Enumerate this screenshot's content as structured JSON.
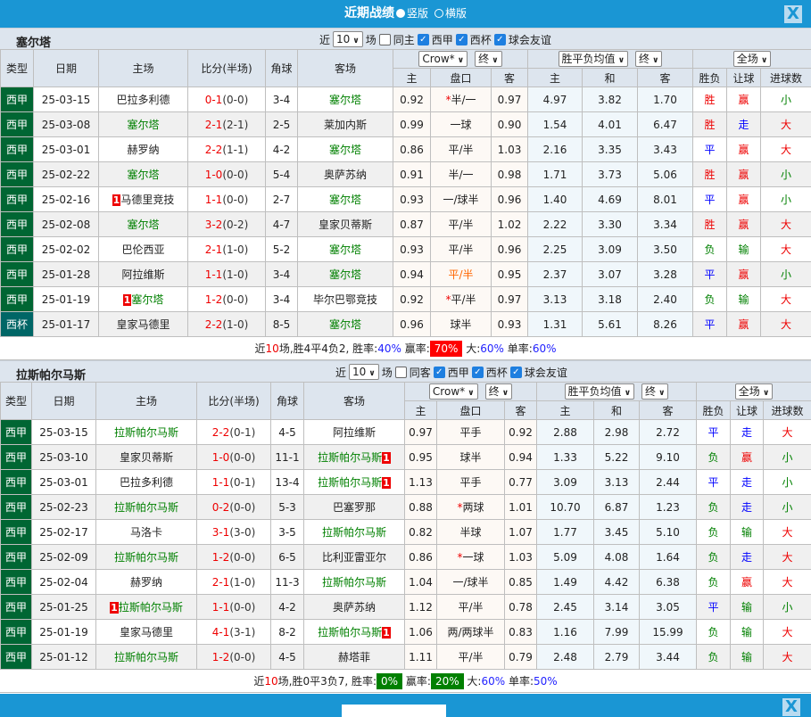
{
  "header": {
    "title": "近期战绩",
    "opt_portrait": "竖版",
    "opt_landscape": "横版",
    "selected": "竖版",
    "close": "X"
  },
  "colors": {
    "brand": "#1a96d4",
    "league_bg": "#006633",
    "cup_bg": "#006666",
    "team": "#008000",
    "score": "#e00",
    "win_badge": "#f00",
    "lose_badge": "#008000"
  },
  "sections": [
    {
      "team": "塞尔塔",
      "ctrl": {
        "near": "近",
        "count": "10",
        "games": "场",
        "same": "同主",
        "same_checked": false,
        "filters": [
          {
            "label": "西甲",
            "checked": true
          },
          {
            "label": "西杯",
            "checked": true
          },
          {
            "label": "球会友谊",
            "checked": true
          }
        ]
      },
      "head": {
        "type": "类型",
        "date": "日期",
        "home": "主场",
        "score": "比分(半场)",
        "corner": "角球",
        "away": "客场",
        "company": "Crow*",
        "term1": "终",
        "eu": "胜平负均值",
        "term2": "终",
        "range": "全场",
        "h_home": "主",
        "h_line": "盘口",
        "h_away": "客",
        "e_home": "主",
        "e_draw": "和",
        "e_away": "客",
        "r_result": "胜负",
        "r_hcap": "让球",
        "r_goals": "进球数"
      },
      "rows": [
        {
          "type": "西甲",
          "date": "25-03-15",
          "home": "巴拉多利德",
          "away": "塞尔塔",
          "team_side": "away",
          "ft": "0-1",
          "ht": "(0-0)",
          "corner": "3-4",
          "o1": "0.92",
          "line": "半/一",
          "star": true,
          "o2": "0.97",
          "e1": "4.97",
          "e2": "3.82",
          "e3": "1.70",
          "res": "胜",
          "hc": "赢",
          "gl": "小"
        },
        {
          "type": "西甲",
          "date": "25-03-08",
          "home": "塞尔塔",
          "away": "莱加内斯",
          "team_side": "home",
          "ft": "2-1",
          "ht": "(2-1)",
          "corner": "2-5",
          "o1": "0.99",
          "line": "一球",
          "o2": "0.90",
          "e1": "1.54",
          "e2": "4.01",
          "e3": "6.47",
          "res": "胜",
          "hc": "走",
          "gl": "大"
        },
        {
          "type": "西甲",
          "date": "25-03-01",
          "home": "赫罗纳",
          "away": "塞尔塔",
          "team_side": "away",
          "ft": "2-2",
          "ht": "(1-1)",
          "corner": "4-2",
          "o1": "0.86",
          "line": "平/半",
          "o2": "1.03",
          "e1": "2.16",
          "e2": "3.35",
          "e3": "3.43",
          "res": "平",
          "hc": "赢",
          "gl": "大"
        },
        {
          "type": "西甲",
          "date": "25-02-22",
          "home": "塞尔塔",
          "away": "奥萨苏纳",
          "team_side": "home",
          "ft": "1-0",
          "ht": "(0-0)",
          "corner": "5-4",
          "o1": "0.91",
          "line": "半/一",
          "o2": "0.98",
          "e1": "1.71",
          "e2": "3.73",
          "e3": "5.06",
          "res": "胜",
          "hc": "赢",
          "gl": "小"
        },
        {
          "type": "西甲",
          "date": "25-02-16",
          "home": "马德里竞技",
          "home_card": "1",
          "away": "塞尔塔",
          "team_side": "away",
          "ft": "1-1",
          "ht": "(0-0)",
          "corner": "2-7",
          "o1": "0.93",
          "line": "一/球半",
          "o2": "0.96",
          "e1": "1.40",
          "e2": "4.69",
          "e3": "8.01",
          "res": "平",
          "hc": "赢",
          "gl": "小"
        },
        {
          "type": "西甲",
          "date": "25-02-08",
          "home": "塞尔塔",
          "away": "皇家贝蒂斯",
          "team_side": "home",
          "ft": "3-2",
          "ht": "(0-2)",
          "corner": "4-7",
          "o1": "0.87",
          "line": "平/半",
          "o2": "1.02",
          "e1": "2.22",
          "e2": "3.30",
          "e3": "3.34",
          "res": "胜",
          "hc": "赢",
          "gl": "大"
        },
        {
          "type": "西甲",
          "date": "25-02-02",
          "home": "巴伦西亚",
          "away": "塞尔塔",
          "team_side": "away",
          "ft": "2-1",
          "ht": "(1-0)",
          "corner": "5-2",
          "o1": "0.93",
          "line": "平/半",
          "o2": "0.96",
          "e1": "2.25",
          "e2": "3.09",
          "e3": "3.50",
          "res": "负",
          "hc": "输",
          "gl": "大"
        },
        {
          "type": "西甲",
          "date": "25-01-28",
          "home": "阿拉维斯",
          "away": "塞尔塔",
          "team_side": "away",
          "ft": "1-1",
          "ht": "(1-0)",
          "corner": "3-4",
          "o1": "0.94",
          "line": "平/半",
          "line_orange": true,
          "o2": "0.95",
          "e1": "2.37",
          "e2": "3.07",
          "e3": "3.28",
          "res": "平",
          "hc": "赢",
          "gl": "小"
        },
        {
          "type": "西甲",
          "date": "25-01-19",
          "home": "塞尔塔",
          "home_card": "1",
          "away": "毕尔巴鄂竞技",
          "team_side": "home",
          "ft": "1-2",
          "ht": "(0-0)",
          "corner": "3-4",
          "o1": "0.92",
          "line": "平/半",
          "star": true,
          "o2": "0.97",
          "e1": "3.13",
          "e2": "3.18",
          "e3": "2.40",
          "res": "负",
          "hc": "输",
          "gl": "大"
        },
        {
          "type": "西杯",
          "date": "25-01-17",
          "home": "皇家马德里",
          "away": "塞尔塔",
          "team_side": "away",
          "ft": "2-2",
          "ht": "(1-0)",
          "corner": "8-5",
          "o1": "0.96",
          "line": "球半",
          "o2": "0.93",
          "e1": "1.31",
          "e2": "5.61",
          "e3": "8.26",
          "res": "平",
          "hc": "赢",
          "gl": "大"
        }
      ],
      "summary": {
        "near": "近",
        "n": "10",
        "mid": "场,胜4平4负2, 胜率:",
        "win_rate": "40%",
        "hc_label": " 赢率:",
        "hc_rate": "70%",
        "hc_badge": "red",
        "big_label": " 大:",
        "big_rate": "60%",
        "odd_label": " 单率:",
        "odd_rate": "60%"
      }
    },
    {
      "team": "拉斯帕尔马斯",
      "ctrl": {
        "near": "近",
        "count": "10",
        "games": "场",
        "same": "同客",
        "same_checked": false,
        "filters": [
          {
            "label": "西甲",
            "checked": true
          },
          {
            "label": "西杯",
            "checked": true
          },
          {
            "label": "球会友谊",
            "checked": true
          }
        ]
      },
      "head": {
        "type": "类型",
        "date": "日期",
        "home": "主场",
        "score": "比分(半场)",
        "corner": "角球",
        "away": "客场",
        "company": "Crow*",
        "term1": "终",
        "eu": "胜平负均值",
        "term2": "终",
        "range": "全场",
        "h_home": "主",
        "h_line": "盘口",
        "h_away": "客",
        "e_home": "主",
        "e_draw": "和",
        "e_away": "客",
        "r_result": "胜负",
        "r_hcap": "让球",
        "r_goals": "进球数"
      },
      "rows": [
        {
          "type": "西甲",
          "date": "25-03-15",
          "home": "拉斯帕尔马斯",
          "away": "阿拉维斯",
          "team_side": "home",
          "ft": "2-2",
          "ht": "(0-1)",
          "corner": "4-5",
          "o1": "0.97",
          "line": "平手",
          "o2": "0.92",
          "e1": "2.88",
          "e2": "2.98",
          "e3": "2.72",
          "res": "平",
          "hc": "走",
          "gl": "大"
        },
        {
          "type": "西甲",
          "date": "25-03-10",
          "home": "皇家贝蒂斯",
          "away": "拉斯帕尔马斯",
          "away_card": "1",
          "team_side": "away",
          "ft": "1-0",
          "ht": "(0-0)",
          "corner": "11-1",
          "o1": "0.95",
          "line": "球半",
          "o2": "0.94",
          "e1": "1.33",
          "e2": "5.22",
          "e3": "9.10",
          "res": "负",
          "hc": "赢",
          "gl": "小"
        },
        {
          "type": "西甲",
          "date": "25-03-01",
          "home": "巴拉多利德",
          "away": "拉斯帕尔马斯",
          "away_card": "1",
          "team_side": "away",
          "ft": "1-1",
          "ht": "(0-1)",
          "corner": "13-4",
          "o1": "1.13",
          "line": "平手",
          "o2": "0.77",
          "e1": "3.09",
          "e2": "3.13",
          "e3": "2.44",
          "res": "平",
          "hc": "走",
          "gl": "小"
        },
        {
          "type": "西甲",
          "date": "25-02-23",
          "home": "拉斯帕尔马斯",
          "away": "巴塞罗那",
          "team_side": "home",
          "ft": "0-2",
          "ht": "(0-0)",
          "corner": "5-3",
          "o1": "0.88",
          "line": "两球",
          "star": true,
          "o2": "1.01",
          "e1": "10.70",
          "e2": "6.87",
          "e3": "1.23",
          "res": "负",
          "hc": "走",
          "gl": "小"
        },
        {
          "type": "西甲",
          "date": "25-02-17",
          "home": "马洛卡",
          "away": "拉斯帕尔马斯",
          "team_side": "away",
          "ft": "3-1",
          "ht": "(3-0)",
          "corner": "3-5",
          "o1": "0.82",
          "line": "半球",
          "o2": "1.07",
          "e1": "1.77",
          "e2": "3.45",
          "e3": "5.10",
          "res": "负",
          "hc": "输",
          "gl": "大"
        },
        {
          "type": "西甲",
          "date": "25-02-09",
          "home": "拉斯帕尔马斯",
          "away": "比利亚雷亚尔",
          "team_side": "home",
          "ft": "1-2",
          "ht": "(0-0)",
          "corner": "6-5",
          "o1": "0.86",
          "line": "一球",
          "star": true,
          "o2": "1.03",
          "e1": "5.09",
          "e2": "4.08",
          "e3": "1.64",
          "res": "负",
          "hc": "走",
          "gl": "大"
        },
        {
          "type": "西甲",
          "date": "25-02-04",
          "home": "赫罗纳",
          "away": "拉斯帕尔马斯",
          "team_side": "away",
          "ft": "2-1",
          "ht": "(1-0)",
          "corner": "11-3",
          "o1": "1.04",
          "line": "一/球半",
          "o2": "0.85",
          "e1": "1.49",
          "e2": "4.42",
          "e3": "6.38",
          "res": "负",
          "hc": "赢",
          "gl": "大"
        },
        {
          "type": "西甲",
          "date": "25-01-25",
          "home": "拉斯帕尔马斯",
          "home_card": "1",
          "away": "奥萨苏纳",
          "team_side": "home",
          "ft": "1-1",
          "ht": "(0-0)",
          "corner": "4-2",
          "o1": "1.12",
          "line": "平/半",
          "o2": "0.78",
          "e1": "2.45",
          "e2": "3.14",
          "e3": "3.05",
          "res": "平",
          "hc": "输",
          "gl": "小"
        },
        {
          "type": "西甲",
          "date": "25-01-19",
          "home": "皇家马德里",
          "away": "拉斯帕尔马斯",
          "away_card": "1",
          "team_side": "away",
          "ft": "4-1",
          "ht": "(3-1)",
          "corner": "8-2",
          "o1": "1.06",
          "line": "两/两球半",
          "o2": "0.83",
          "e1": "1.16",
          "e2": "7.99",
          "e3": "15.99",
          "res": "负",
          "hc": "输",
          "gl": "大"
        },
        {
          "type": "西甲",
          "date": "25-01-12",
          "home": "拉斯帕尔马斯",
          "away": "赫塔菲",
          "team_side": "home",
          "ft": "1-2",
          "ht": "(0-0)",
          "corner": "4-5",
          "o1": "1.11",
          "line": "平/半",
          "o2": "0.79",
          "e1": "2.48",
          "e2": "2.79",
          "e3": "3.44",
          "res": "负",
          "hc": "输",
          "gl": "大"
        }
      ],
      "summary": {
        "near": "近",
        "n": "10",
        "mid": "场,胜0平3负7, 胜率:",
        "win_rate": "0%",
        "win_badge": "green",
        "hc_label": " 赢率:",
        "hc_rate": "20%",
        "hc_badge": "green",
        "big_label": " 大:",
        "big_rate": "60%",
        "odd_label": " 单率:",
        "odd_rate": "50%"
      }
    }
  ]
}
